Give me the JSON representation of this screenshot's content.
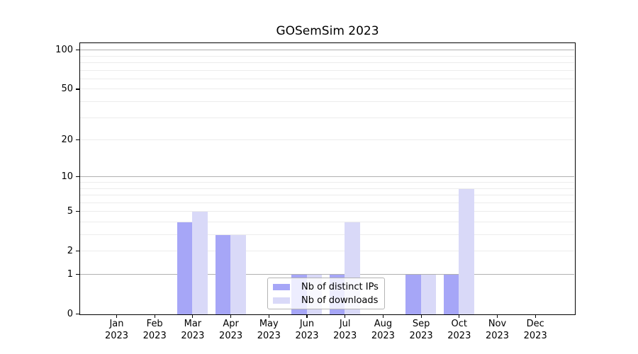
{
  "title": "GOSemSim 2023",
  "chart_data": {
    "type": "bar",
    "title": "GOSemSim 2023",
    "x_month_labels": [
      "Jan",
      "Feb",
      "Mar",
      "Apr",
      "May",
      "Jun",
      "Jul",
      "Aug",
      "Sep",
      "Oct",
      "Nov",
      "Dec"
    ],
    "x_year_label": "2023",
    "series": [
      {
        "name": "Nb of distinct IPs",
        "color": "#a6a6f7",
        "values": [
          0,
          0,
          4,
          3,
          0,
          1,
          1,
          0,
          1,
          1,
          0,
          0
        ]
      },
      {
        "name": "Nb of downloads",
        "color": "#d9d9f8",
        "values": [
          0,
          0,
          5,
          3,
          0,
          1,
          4,
          0,
          1,
          8,
          0,
          0
        ]
      }
    ],
    "y_axis": {
      "scale": "log10(value+1)",
      "tick_values": [
        0,
        1,
        2,
        5,
        10,
        20,
        50,
        100
      ],
      "major_gridlines": [
        1,
        10,
        100
      ],
      "minor_gridlines": [
        2,
        3,
        4,
        5,
        6,
        7,
        8,
        9,
        20,
        30,
        40,
        50,
        60,
        70,
        80,
        90
      ]
    },
    "legend_labels": [
      "Nb of distinct IPs",
      "Nb of downloads"
    ],
    "colors": {
      "major_grid": "#b0b0b0",
      "minor_grid": "#ececec",
      "axis": "#000000"
    }
  }
}
